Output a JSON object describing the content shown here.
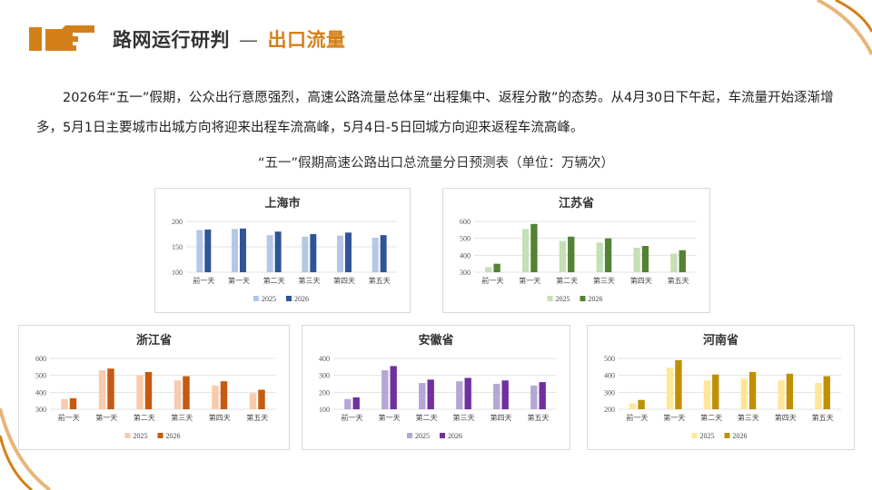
{
  "header": {
    "title": "路网运行研判",
    "separator": "—",
    "subtitle": "出口流量"
  },
  "intro": {
    "text": "2026年“五一”假期，公众出行意愿强烈，高速公路流量总体呈“出程集中、返程分散”的态势。从4月30日下午起，车流量开始逐渐增多，5月1日主要城市出城方向将迎来出程车流高峰，5月4日-5日回城方向迎来返程车流高峰。"
  },
  "table_title": "“五一”假期高速公路出口总流量分日预测表（单位：万辆次）",
  "colors": {
    "accent": "#d4801a",
    "shanghai": [
      "#b4c7e7",
      "#2f5597"
    ],
    "jiangsu": [
      "#c5e0b4",
      "#548235"
    ],
    "zhejiang": [
      "#f8cbad",
      "#c55a11"
    ],
    "anhui": [
      "#b4a7d6",
      "#7030a0"
    ],
    "henan": [
      "#ffe699",
      "#bf9000"
    ]
  },
  "chart_data": [
    {
      "type": "bar",
      "title": "上海市",
      "categories": [
        "前一天",
        "第一天",
        "第二天",
        "第三天",
        "第四天",
        "第五天"
      ],
      "series": [
        {
          "name": "2025",
          "values": [
            183,
            185,
            173,
            170,
            172,
            168
          ]
        },
        {
          "name": "2026",
          "values": [
            184,
            186,
            180,
            175,
            178,
            173
          ]
        }
      ],
      "yticks": [
        100,
        150,
        200
      ],
      "ylim": [
        100,
        200
      ],
      "legend": "bottom",
      "grid": true
    },
    {
      "type": "bar",
      "title": "江苏省",
      "categories": [
        "前一天",
        "第一天",
        "第二天",
        "第三天",
        "第四天",
        "第五天"
      ],
      "series": [
        {
          "name": "2025",
          "values": [
            330,
            555,
            485,
            475,
            445,
            410
          ]
        },
        {
          "name": "2026",
          "values": [
            350,
            585,
            510,
            500,
            455,
            430
          ]
        }
      ],
      "yticks": [
        300,
        400,
        500,
        600
      ],
      "ylim": [
        300,
        600
      ],
      "legend": "bottom",
      "grid": true
    },
    {
      "type": "bar",
      "title": "浙江省",
      "categories": [
        "前一天",
        "第一天",
        "第二天",
        "第三天",
        "第四天",
        "第五天"
      ],
      "series": [
        {
          "name": "2025",
          "values": [
            360,
            530,
            500,
            470,
            440,
            395
          ]
        },
        {
          "name": "2026",
          "values": [
            365,
            540,
            520,
            495,
            465,
            415
          ]
        }
      ],
      "yticks": [
        300,
        400,
        500,
        600
      ],
      "ylim": [
        300,
        600
      ],
      "legend": "bottom",
      "grid": true
    },
    {
      "type": "bar",
      "title": "安徽省",
      "categories": [
        "前一天",
        "第一天",
        "第二天",
        "第三天",
        "第四天",
        "第五天"
      ],
      "series": [
        {
          "name": "2025",
          "values": [
            160,
            330,
            255,
            265,
            250,
            240
          ]
        },
        {
          "name": "2026",
          "values": [
            170,
            355,
            275,
            285,
            270,
            260
          ]
        }
      ],
      "yticks": [
        100,
        200,
        300,
        400
      ],
      "ylim": [
        100,
        400
      ],
      "legend": "bottom",
      "grid": true
    },
    {
      "type": "bar",
      "title": "河南省",
      "categories": [
        "前一天",
        "第一天",
        "第二天",
        "第三天",
        "第四天",
        "第五天"
      ],
      "series": [
        {
          "name": "2025",
          "values": [
            235,
            445,
            370,
            380,
            370,
            355
          ]
        },
        {
          "name": "2026",
          "values": [
            255,
            490,
            405,
            420,
            410,
            395
          ]
        }
      ],
      "yticks": [
        200,
        300,
        400,
        500
      ],
      "ylim": [
        200,
        500
      ],
      "legend": "bottom",
      "grid": true
    }
  ]
}
